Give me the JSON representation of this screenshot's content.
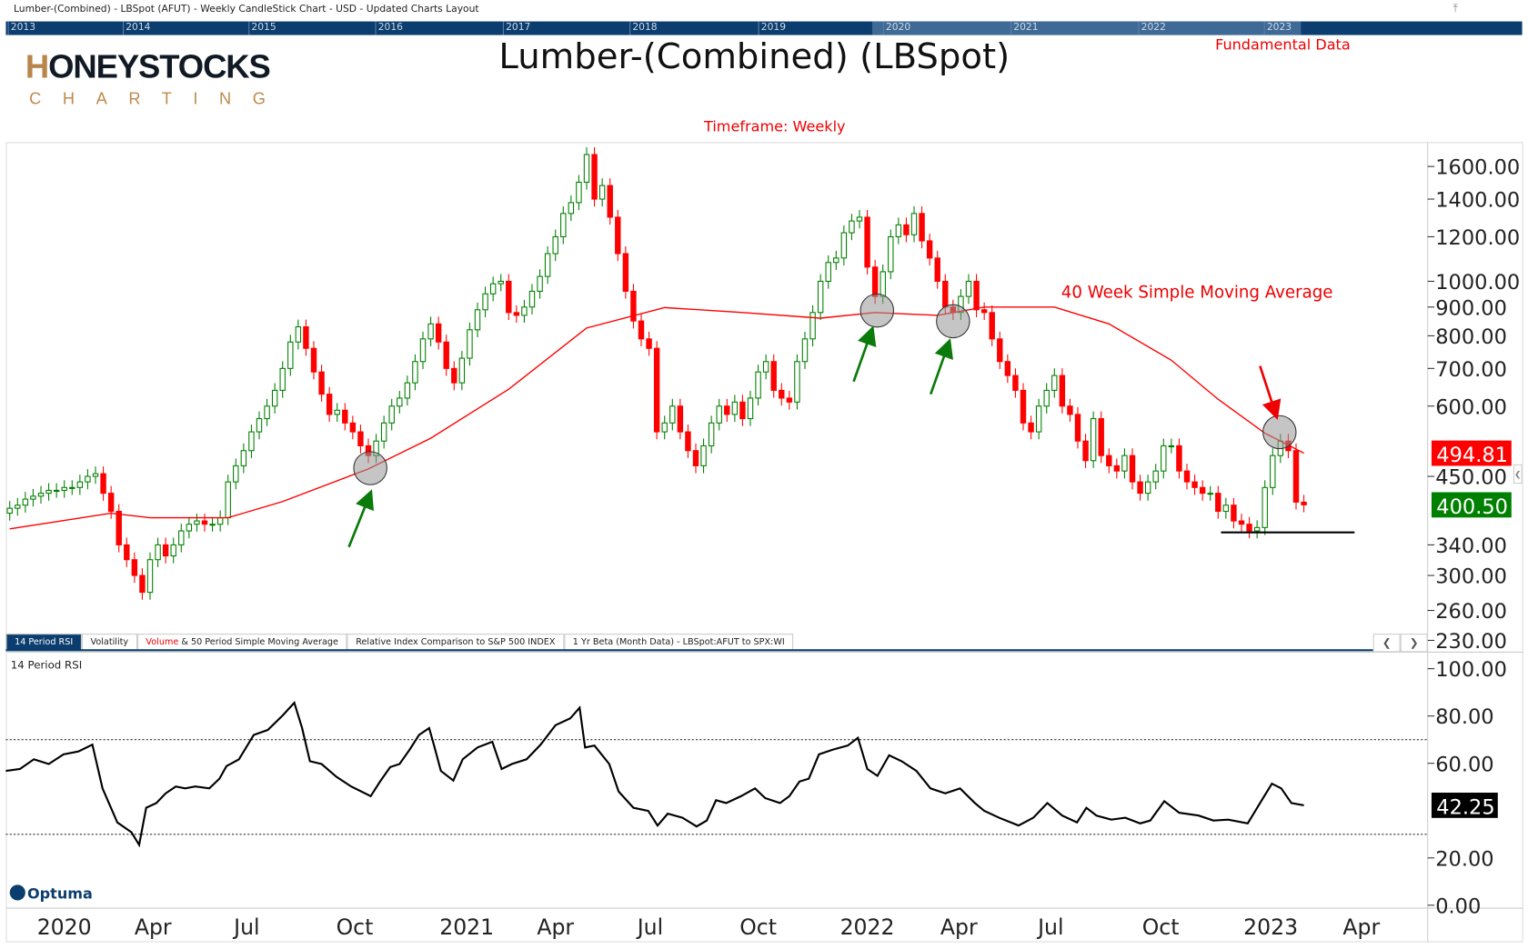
{
  "window": {
    "title": "Lumber-(Combined) - LBSpot (AFUT) - Weekly CandleStick Chart - USD - Updated Charts Layout"
  },
  "navigator": {
    "years": [
      "2013",
      "2014",
      "2015",
      "2016",
      "2017",
      "2018",
      "2019",
      "2020",
      "2021",
      "2022",
      "2023"
    ]
  },
  "logo": {
    "main": "HONEYSTOCKS",
    "sub": "CHARTING"
  },
  "header": {
    "title": "Lumber-(Combined) (LBSpot)",
    "fundamental_link": "Fundamental Data",
    "timeframe": "Timeframe: Weekly"
  },
  "annotation": {
    "sma_label": "40 Week Simple Moving Average"
  },
  "colors": {
    "up": "#008000",
    "down": "#ff0000",
    "sma": "#ff0000",
    "nav": "#0b3d6e",
    "last_price_bg": "#008000",
    "sma_price_bg": "#ff0000"
  },
  "tabs": [
    {
      "label": "14 Period RSI",
      "active": true
    },
    {
      "label": "Volatility"
    },
    {
      "label_red": "Volume",
      "label": " & 50 Period Simple Moving Average"
    },
    {
      "label": "Relative Index Comparison to S&P 500 INDEX"
    },
    {
      "label": "1 Yr Beta (Month Data) - LBSpot:AFUT to SPX:WI"
    }
  ],
  "rsi_panel": {
    "label": "14 Period RSI"
  },
  "footer": {
    "brand": "Optuma"
  },
  "chart_data": [
    {
      "type": "candlestick",
      "title": "Lumber-(Combined) (LBSpot)",
      "yscale": "log",
      "ylim": [
        230,
        1700
      ],
      "yticks": [
        "1600.00",
        "1400.00",
        "1200.00",
        "1000.00",
        "900.00",
        "800.00",
        "700.00",
        "600.00",
        "450.00",
        "340.00",
        "300.00",
        "260.00",
        "230.00"
      ],
      "ytick_values": [
        1600,
        1400,
        1200,
        1000,
        900,
        800,
        700,
        600,
        450,
        340,
        300,
        260,
        230
      ],
      "xticks": [
        "2020",
        "Apr",
        "Jul",
        "Oct",
        "2021",
        "Apr",
        "Jul",
        "Oct",
        "2022",
        "Apr",
        "Jul",
        "Oct",
        "2023",
        "Apr"
      ],
      "last_price": "400.50",
      "sma_last": "494.81",
      "closes": [
        395,
        400,
        410,
        415,
        420,
        425,
        425,
        430,
        430,
        440,
        450,
        455,
        420,
        390,
        340,
        320,
        300,
        280,
        320,
        340,
        325,
        340,
        360,
        370,
        375,
        370,
        370,
        380,
        440,
        470,
        500,
        540,
        570,
        600,
        640,
        700,
        780,
        830,
        760,
        690,
        630,
        580,
        590,
        560,
        540,
        510,
        490,
        520,
        560,
        600,
        620,
        660,
        720,
        790,
        840,
        780,
        700,
        660,
        730,
        820,
        890,
        950,
        990,
        1000,
        880,
        870,
        900,
        960,
        1020,
        1120,
        1200,
        1320,
        1380,
        1500,
        1680,
        1400,
        1480,
        1300,
        1120,
        960,
        850,
        790,
        760,
        540,
        560,
        600,
        540,
        500,
        470,
        510,
        560,
        600,
        580,
        610,
        570,
        620,
        690,
        720,
        640,
        620,
        610,
        720,
        790,
        880,
        1000,
        1080,
        1100,
        1220,
        1280,
        1300,
        1060,
        940,
        1040,
        1200,
        1260,
        1210,
        1320,
        1180,
        1100,
        1000,
        900,
        880,
        940,
        1000,
        890,
        880,
        790,
        720,
        680,
        640,
        560,
        540,
        600,
        640,
        680,
        600,
        580,
        520,
        480,
        570,
        490,
        470,
        460,
        490,
        440,
        420,
        440,
        460,
        510,
        510,
        460,
        440,
        430,
        420,
        420,
        390,
        400,
        375,
        370,
        360,
        365,
        430,
        490,
        520,
        500,
        405,
        400.5
      ],
      "sma40": [
        [
          0,
          363
        ],
        [
          13,
          387
        ],
        [
          18,
          380
        ],
        [
          28,
          380
        ],
        [
          35,
          406
        ],
        [
          46,
          464
        ],
        [
          54,
          526
        ],
        [
          64,
          643
        ],
        [
          74,
          826
        ],
        [
          84,
          898
        ],
        [
          94,
          880
        ],
        [
          104,
          860
        ],
        [
          111,
          880
        ],
        [
          119,
          870
        ],
        [
          125,
          900
        ],
        [
          134,
          900
        ],
        [
          141,
          840
        ],
        [
          149,
          724
        ],
        [
          155,
          617
        ],
        [
          161,
          537
        ],
        [
          166,
          495
        ]
      ]
    },
    {
      "type": "line",
      "title": "14 Period RSI",
      "ylim": [
        0,
        100
      ],
      "yticks": [
        "100.00",
        "80.00",
        "60.00",
        "20.00",
        "0.00"
      ],
      "ytick_values": [
        100,
        80,
        60,
        20,
        0
      ],
      "overbought": 70,
      "oversold": 30,
      "last_value": "42.25",
      "points": [
        [
          -0.5,
          56.8
        ],
        [
          1.3,
          57.6
        ],
        [
          3.1,
          61.7
        ],
        [
          5,
          59.7
        ],
        [
          6.9,
          63.8
        ],
        [
          8.8,
          65
        ],
        [
          10.6,
          67.9
        ],
        [
          11.9,
          49.4
        ],
        [
          13.8,
          35
        ],
        [
          15.6,
          30.9
        ],
        [
          16.6,
          25.5
        ],
        [
          17.5,
          41.2
        ],
        [
          18.8,
          43.2
        ],
        [
          20,
          47.3
        ],
        [
          21.3,
          50.2
        ],
        [
          22.5,
          49.4
        ],
        [
          23.8,
          50.2
        ],
        [
          25.6,
          49.4
        ],
        [
          26.9,
          53.5
        ],
        [
          27.8,
          58.8
        ],
        [
          29.4,
          61.7
        ],
        [
          31.3,
          72
        ],
        [
          33.1,
          74.1
        ],
        [
          35,
          80.2
        ],
        [
          36.5,
          85.6
        ],
        [
          37.5,
          74.9
        ],
        [
          38.5,
          60.9
        ],
        [
          40,
          59.7
        ],
        [
          41.9,
          54.3
        ],
        [
          43.8,
          50.2
        ],
        [
          46.3,
          46.1
        ],
        [
          47.5,
          52.3
        ],
        [
          48.8,
          58.4
        ],
        [
          50,
          59.7
        ],
        [
          51.3,
          65.8
        ],
        [
          52.5,
          72
        ],
        [
          53.8,
          74.9
        ],
        [
          54.4,
          67.9
        ],
        [
          55.3,
          56.8
        ],
        [
          56.9,
          52.7
        ],
        [
          58.1,
          61.7
        ],
        [
          60,
          66.7
        ],
        [
          61.9,
          69.1
        ],
        [
          63.1,
          57.6
        ],
        [
          64.4,
          59.7
        ],
        [
          66.3,
          61.7
        ],
        [
          68.1,
          67.9
        ],
        [
          70,
          76.1
        ],
        [
          71.9,
          79
        ],
        [
          73.1,
          83.5
        ],
        [
          73.8,
          66.7
        ],
        [
          75,
          67.5
        ],
        [
          76.9,
          59.7
        ],
        [
          78.1,
          48.1
        ],
        [
          80,
          41.2
        ],
        [
          81.9,
          39.9
        ],
        [
          83.1,
          33.7
        ],
        [
          84.4,
          38.7
        ],
        [
          86.3,
          37
        ],
        [
          88.1,
          33.3
        ],
        [
          89.4,
          35.8
        ],
        [
          90.6,
          44.4
        ],
        [
          91.9,
          43.2
        ],
        [
          93.8,
          46.1
        ],
        [
          95.6,
          49.4
        ],
        [
          96.9,
          45.3
        ],
        [
          98.8,
          43.2
        ],
        [
          100,
          46.1
        ],
        [
          101.3,
          52.3
        ],
        [
          102.5,
          53.5
        ],
        [
          103.8,
          63.8
        ],
        [
          105.6,
          65.8
        ],
        [
          107.5,
          67.5
        ],
        [
          108.8,
          70.8
        ],
        [
          110,
          57.6
        ],
        [
          111.3,
          54.7
        ],
        [
          112.8,
          63.4
        ],
        [
          114.4,
          60.9
        ],
        [
          116.3,
          56.8
        ],
        [
          118.1,
          49.4
        ],
        [
          120,
          47.3
        ],
        [
          121.9,
          49.4
        ],
        [
          123.8,
          43.2
        ],
        [
          125,
          39.9
        ],
        [
          126.9,
          37
        ],
        [
          129.4,
          33.7
        ],
        [
          131.3,
          37
        ],
        [
          133.1,
          43.2
        ],
        [
          135,
          37.9
        ],
        [
          136.9,
          35
        ],
        [
          138.1,
          41.2
        ],
        [
          139.4,
          37.9
        ],
        [
          141.3,
          36.2
        ],
        [
          143.1,
          37
        ],
        [
          145,
          34.6
        ],
        [
          146.3,
          35.8
        ],
        [
          148.1,
          44
        ],
        [
          150,
          39.1
        ],
        [
          152.5,
          37.9
        ],
        [
          154.4,
          35.8
        ],
        [
          156.3,
          36.2
        ],
        [
          158.8,
          34.6
        ],
        [
          160.6,
          44.4
        ],
        [
          161.9,
          51.4
        ],
        [
          163.1,
          49.4
        ],
        [
          164.4,
          43.2
        ],
        [
          166,
          42.25
        ]
      ]
    }
  ]
}
